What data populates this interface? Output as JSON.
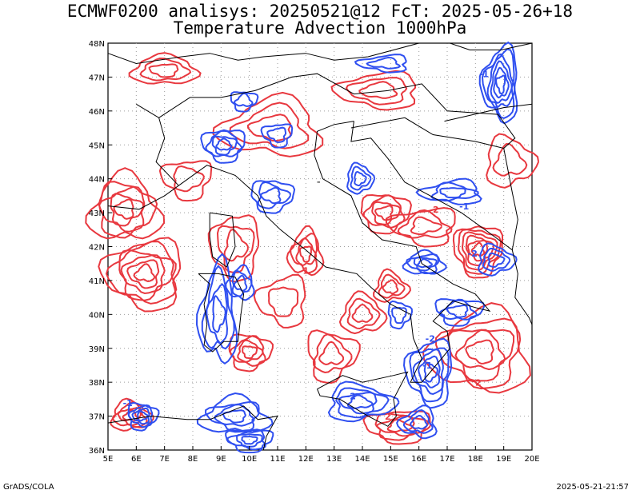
{
  "title": {
    "line1": "ECMWF0200 analisys: 20250521@12 FcT: 2025-05-26+18",
    "line2": "Temperature Advection 1000hPa"
  },
  "footer": {
    "left": "GrADS/COLA",
    "right": "2025-05-21-21:57"
  },
  "map": {
    "lon_range": [
      5,
      20
    ],
    "lat_range": [
      36,
      48
    ],
    "lon_labels": [
      "5E",
      "6E",
      "7E",
      "8E",
      "9E",
      "10E",
      "11E",
      "12E",
      "13E",
      "14E",
      "15E",
      "16E",
      "17E",
      "18E",
      "19E",
      "20E"
    ],
    "lat_labels": [
      "36N",
      "37N",
      "38N",
      "39N",
      "40N",
      "41N",
      "42N",
      "43N",
      "44N",
      "45N",
      "46N",
      "47N",
      "48N"
    ],
    "colors": {
      "positive": "#e8383f",
      "negative": "#2f4ff0",
      "coast": "#000000",
      "grid": "#a0a0a0"
    },
    "contour_labels": [
      {
        "text": "-1",
        "lon": 18.3,
        "lat": 47.0,
        "kind": "negative"
      },
      {
        "text": "-1",
        "lon": 17.6,
        "lat": 43.1,
        "kind": "negative"
      },
      {
        "text": "-2",
        "lon": 17.9,
        "lat": 41.7,
        "kind": "negative"
      },
      {
        "text": "-2",
        "lon": 16.4,
        "lat": 39.2,
        "kind": "negative"
      },
      {
        "text": "-2",
        "lon": 13.6,
        "lat": 37.5,
        "kind": "negative"
      },
      {
        "text": "-1",
        "lon": 5.7,
        "lat": 37.3,
        "kind": "negative"
      },
      {
        "text": "-1",
        "lon": 16.3,
        "lat": 38.4,
        "kind": "negative"
      },
      {
        "text": "2",
        "lon": 16.6,
        "lat": 43.0,
        "kind": "positive"
      },
      {
        "text": "2",
        "lon": 18.1,
        "lat": 37.9,
        "kind": "positive"
      },
      {
        "text": "1",
        "lon": 12.0,
        "lat": 41.2,
        "kind": "positive"
      },
      {
        "text": "2",
        "lon": 14.9,
        "lat": 36.9,
        "kind": "positive"
      }
    ]
  }
}
